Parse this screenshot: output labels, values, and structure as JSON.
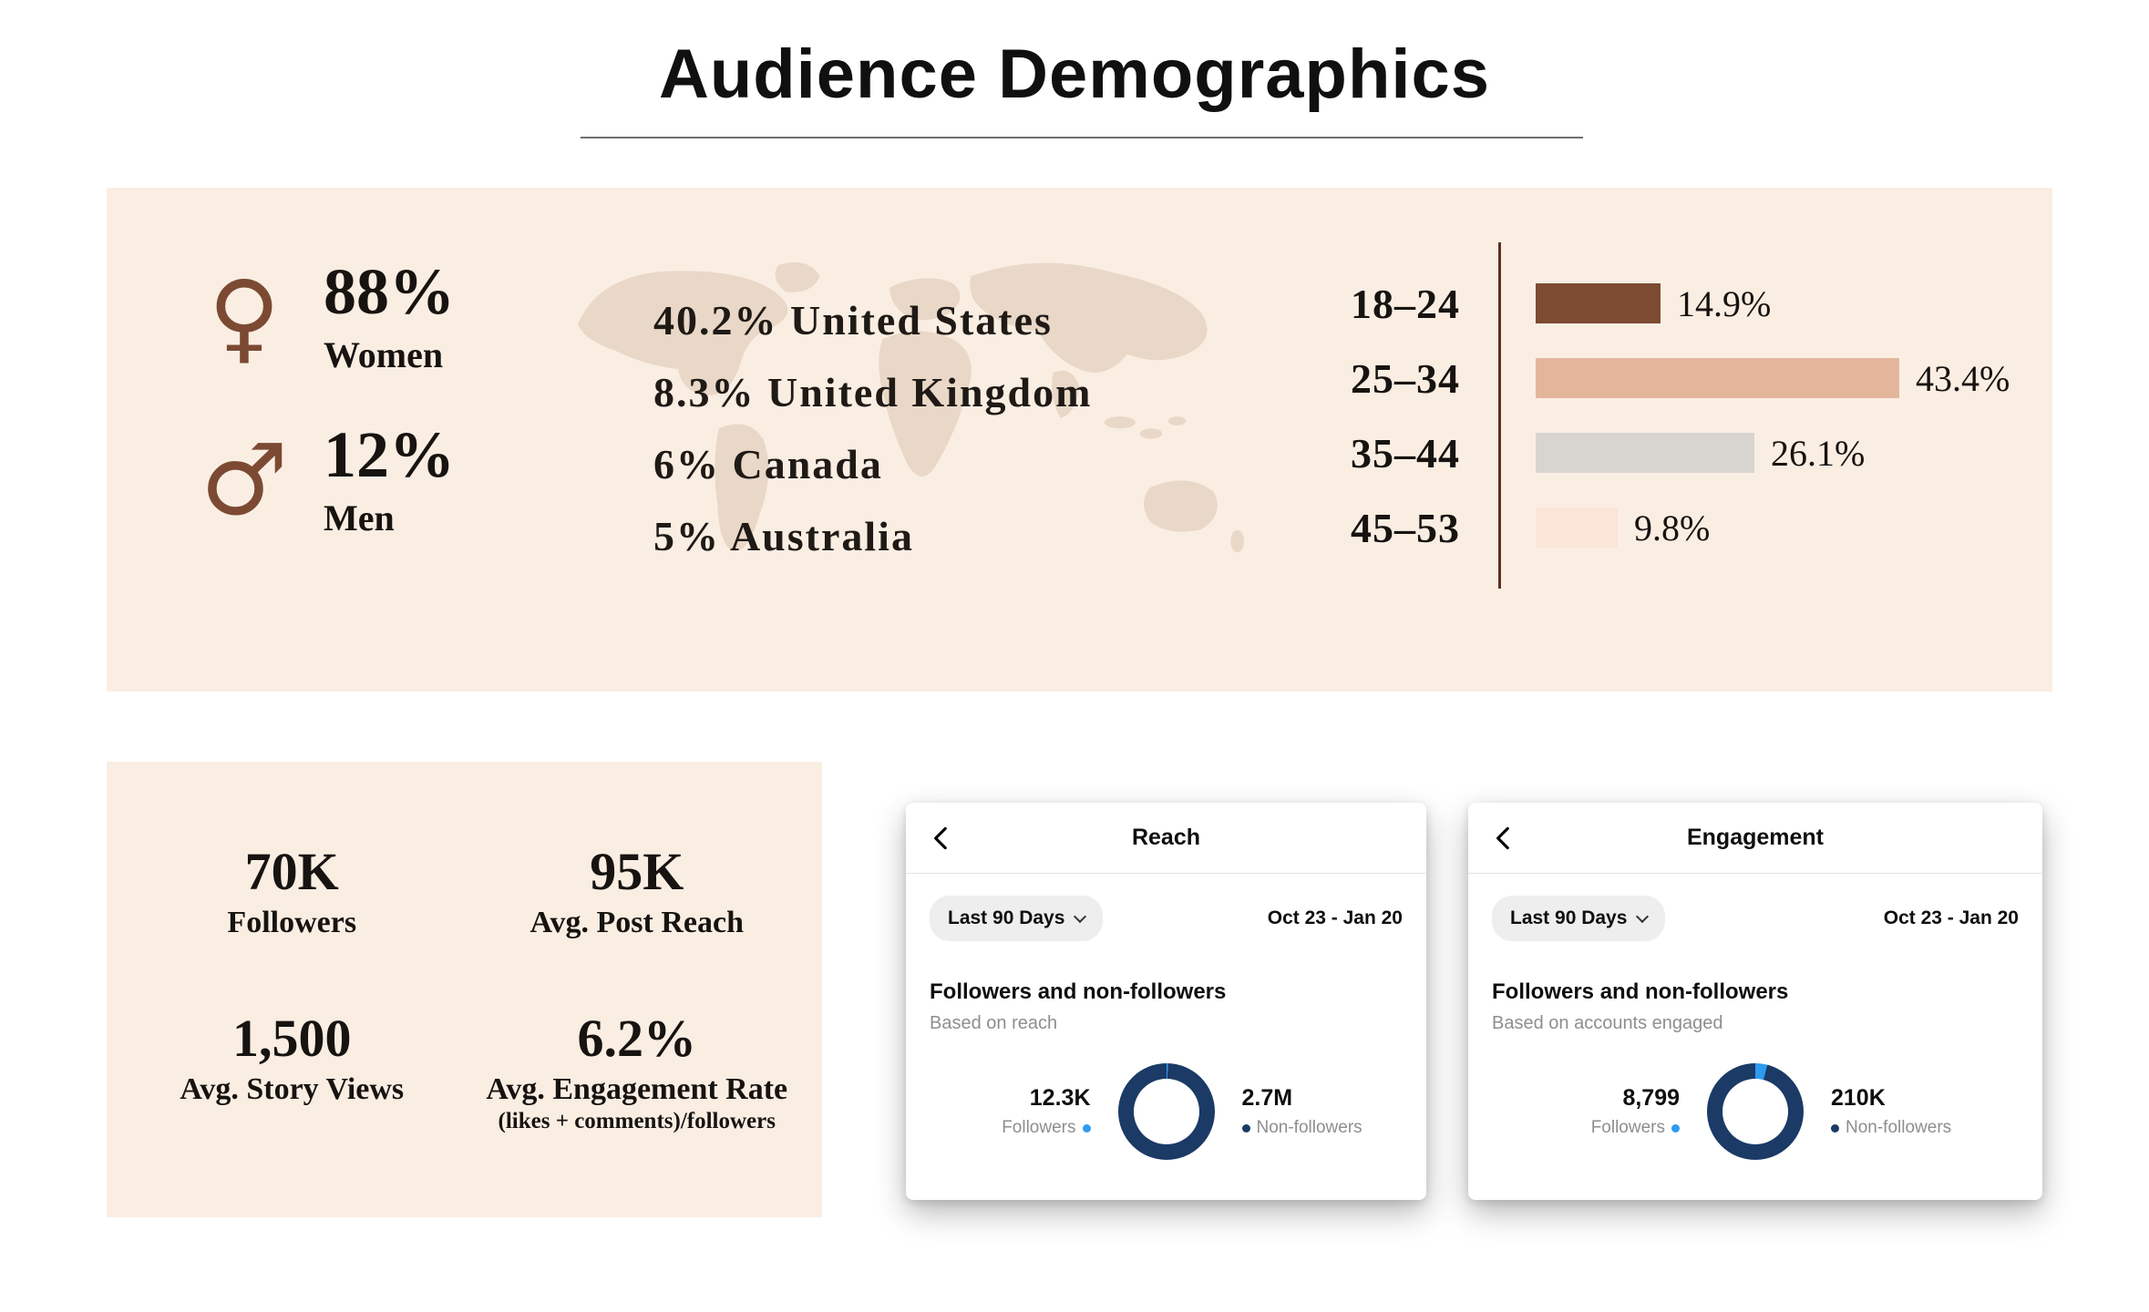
{
  "colors": {
    "panel_bg": "#faeee3",
    "accent_brown": "#7c4a33",
    "age_axis_line": "#5e3121",
    "donut_navy": "#1b3a66",
    "donut_blue": "#2e9bf0",
    "map_fill": "#e9d8c7",
    "muted_gray": "#8e8e8e"
  },
  "page_title": "Audience Demographics",
  "demographics": {
    "gender": [
      {
        "percent": "88%",
        "label": "Women"
      },
      {
        "percent": "12%",
        "label": "Men"
      }
    ],
    "countries": [
      "40.2% United States",
      "8.3% United Kingdom",
      "6% Canada",
      "5% Australia"
    ]
  },
  "stats": [
    {
      "value": "70K",
      "label": "Followers"
    },
    {
      "value": "95K",
      "label": "Avg. Post Reach"
    },
    {
      "value": "1,500",
      "label": "Avg. Story Views"
    },
    {
      "value": "6.2%",
      "label": "Avg. Engagement Rate",
      "sublabel": "(likes + comments)/followers"
    }
  ],
  "reach_card": {
    "title": "Reach",
    "filter_label": "Last 90 Days",
    "date_range": "Oct 23 - Jan 20",
    "section_title": "Followers and non-followers",
    "section_subtitle": "Based on reach",
    "followers_value": "12.3K",
    "followers_label": "Followers",
    "nonfollowers_value": "2.7M",
    "nonfollowers_label": "Non-followers"
  },
  "engagement_card": {
    "title": "Engagement",
    "filter_label": "Last 90 Days",
    "date_range": "Oct 23 - Jan 20",
    "section_title": "Followers and non-followers",
    "section_subtitle": "Based on accounts engaged",
    "followers_value": "8,799",
    "followers_label": "Followers",
    "nonfollowers_value": "210K",
    "nonfollowers_label": "Non-followers"
  },
  "chart_data": [
    {
      "type": "bar",
      "orientation": "horizontal",
      "title": "Audience age distribution",
      "categories": [
        "18–24",
        "25–34",
        "35–44",
        "45–53"
      ],
      "values": [
        14.9,
        43.4,
        26.1,
        9.8
      ],
      "value_labels": [
        "14.9%",
        "43.4%",
        "26.1%",
        "9.8%"
      ],
      "unit": "%",
      "xlim": [
        0,
        45
      ],
      "colors": [
        "#7d4a32",
        "#e3b69c",
        "#d8d4d0",
        "#fbe5d8"
      ]
    },
    {
      "type": "pie",
      "title": "Reach: Followers and non-followers",
      "labels": [
        "Followers",
        "Non-followers"
      ],
      "values": [
        12300,
        2700000
      ],
      "value_labels": [
        "12.3K",
        "2.7M"
      ],
      "colors": [
        "#2e9bf0",
        "#1b3a66"
      ]
    },
    {
      "type": "pie",
      "title": "Engagement: Followers and non-followers",
      "labels": [
        "Followers",
        "Non-followers"
      ],
      "values": [
        8799,
        210000
      ],
      "value_labels": [
        "8,799",
        "210K"
      ],
      "colors": [
        "#2e9bf0",
        "#1b3a66"
      ]
    }
  ]
}
